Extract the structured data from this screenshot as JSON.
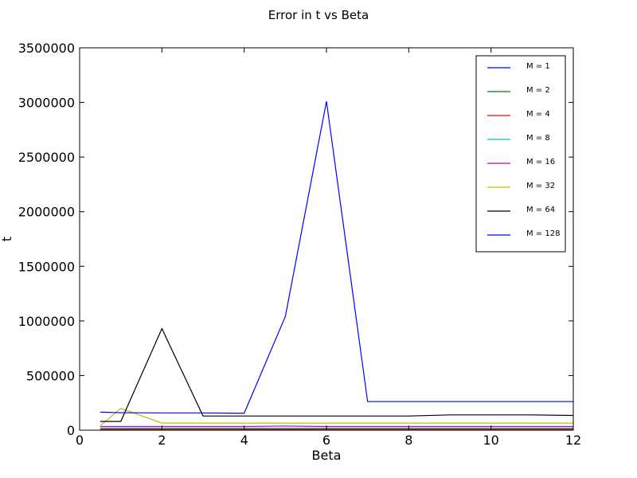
{
  "chart_data": {
    "type": "line",
    "title": "Error in t vs Beta",
    "xlabel": "Beta",
    "ylabel": "t",
    "xlim": [
      0,
      12
    ],
    "ylim": [
      0,
      3500000
    ],
    "xticks": [
      0,
      2,
      4,
      6,
      8,
      10,
      12
    ],
    "yticks": [
      0,
      500000,
      1000000,
      1500000,
      2000000,
      2500000,
      3000000,
      3500000
    ],
    "xtick_labels": [
      "0",
      "2",
      "4",
      "6",
      "8",
      "10",
      "12"
    ],
    "ytick_labels": [
      "0",
      "500000",
      "1000000",
      "1500000",
      "2000000",
      "2500000",
      "3000000",
      "3500000"
    ],
    "grid": false,
    "legend_position": "top-right",
    "x": [
      0.5,
      1,
      2,
      3,
      4,
      5,
      6,
      7,
      8,
      9,
      10,
      11,
      12
    ],
    "series": [
      {
        "name": "M = 1",
        "color": "#0000ff",
        "values": [
          2500,
          2500,
          2500,
          2500,
          2500,
          2500,
          2500,
          2500,
          2500,
          2500,
          2500,
          2500,
          2500
        ]
      },
      {
        "name": "M = 2",
        "color": "#008000",
        "values": [
          5000,
          5000,
          5000,
          5000,
          5000,
          5000,
          5000,
          5000,
          5000,
          5000,
          5000,
          5000,
          5000
        ]
      },
      {
        "name": "M = 4",
        "color": "#ff0000",
        "values": [
          10000,
          10000,
          10000,
          10000,
          10000,
          10000,
          10000,
          10000,
          10000,
          10000,
          10000,
          10000,
          10000
        ]
      },
      {
        "name": "M = 8",
        "color": "#00bfbf",
        "values": [
          18000,
          18000,
          18000,
          18000,
          18000,
          18000,
          18000,
          18000,
          18000,
          18000,
          18000,
          18000,
          18000
        ]
      },
      {
        "name": "M = 16",
        "color": "#bf00bf",
        "values": [
          33000,
          33000,
          33000,
          33000,
          33000,
          38000,
          33000,
          33000,
          33000,
          33000,
          33000,
          33000,
          33000
        ]
      },
      {
        "name": "M = 32",
        "color": "#bfbf00",
        "values": [
          40000,
          200000,
          65000,
          65000,
          65000,
          65000,
          65000,
          65000,
          65000,
          65000,
          65000,
          65000,
          65000
        ]
      },
      {
        "name": "M = 64",
        "color": "#000000",
        "values": [
          80000,
          80000,
          930000,
          130000,
          130000,
          130000,
          130000,
          130000,
          130000,
          140000,
          140000,
          140000,
          135000
        ]
      },
      {
        "name": "M = 128",
        "color": "#0000ff",
        "values": [
          165000,
          160000,
          158000,
          158000,
          155000,
          1040000,
          3010000,
          262000,
          262000,
          262000,
          262000,
          262000,
          262000
        ]
      }
    ]
  }
}
